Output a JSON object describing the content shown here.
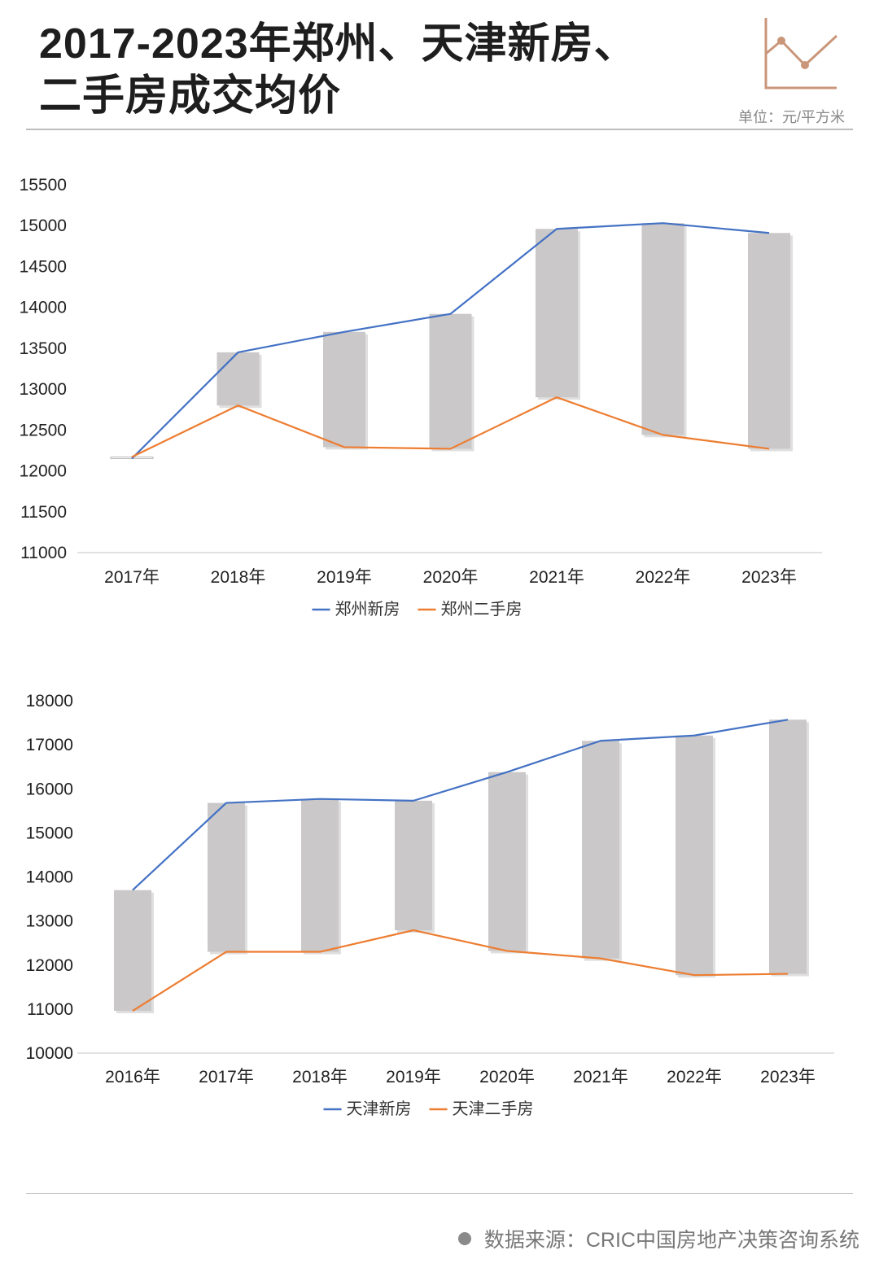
{
  "header": {
    "title_line1": "2017-2023年郑州、天津新房、",
    "title_line2": "二手房成交均价",
    "unit": "单位：元/平方米",
    "icon": "line-chart-icon",
    "icon_color": "#c9967a"
  },
  "footer": {
    "source": "数据来源：CRIC中国房地产决策咨询系统"
  },
  "colors": {
    "new_house": "#4472c4",
    "second_hand": "#ed7d31",
    "bar": "#cbc8c9",
    "axis": "#d9d9d9"
  },
  "chart_data": [
    {
      "type": "line",
      "categories": [
        "2017年",
        "2018年",
        "2019年",
        "2020年",
        "2021年",
        "2022年",
        "2023年"
      ],
      "series": [
        {
          "name": "郑州新房",
          "values": [
            12150,
            13450,
            13700,
            13920,
            14960,
            15030,
            14910
          ]
        },
        {
          "name": "郑州二手房",
          "values": [
            12170,
            12800,
            12290,
            12270,
            12900,
            12440,
            12270
          ]
        }
      ],
      "ylim": [
        11000,
        15500
      ],
      "yticks": [
        11000,
        11500,
        12000,
        12500,
        13000,
        13500,
        14000,
        14500,
        15000,
        15500
      ],
      "legend": "bottom",
      "grid": false
    },
    {
      "type": "line",
      "categories": [
        "2016年",
        "2017年",
        "2018年",
        "2019年",
        "2020年",
        "2021年",
        "2022年",
        "2023年"
      ],
      "series": [
        {
          "name": "天津新房",
          "values": [
            13700,
            15680,
            15770,
            15730,
            16380,
            17090,
            17210,
            17570
          ]
        },
        {
          "name": "天津二手房",
          "values": [
            10960,
            12300,
            12300,
            12790,
            12320,
            12150,
            11770,
            11800
          ]
        }
      ],
      "ylim": [
        10000,
        18000
      ],
      "yticks": [
        10000,
        11000,
        12000,
        13000,
        14000,
        15000,
        16000,
        17000,
        18000
      ],
      "legend": "bottom",
      "grid": false
    }
  ]
}
